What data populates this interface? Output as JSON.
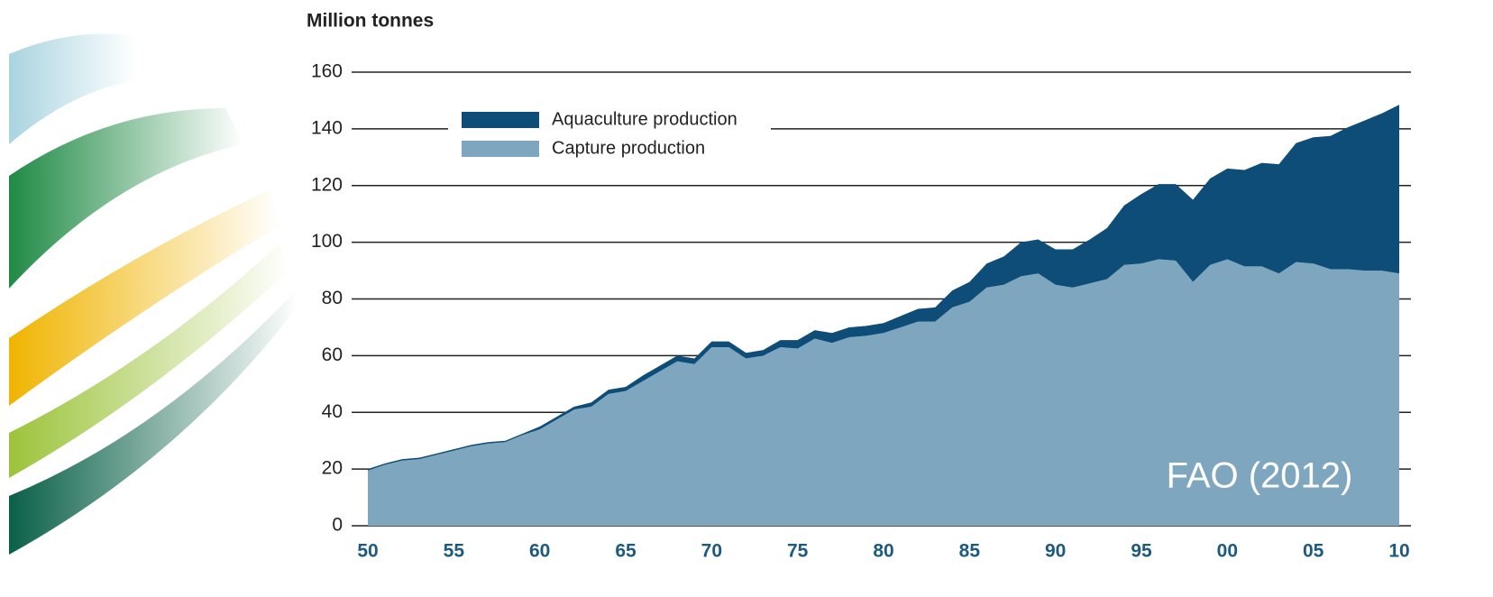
{
  "chart_data": {
    "type": "stacked-area",
    "title": "Million tonnes",
    "annotation": "FAO (2012)",
    "categories": [
      "50",
      null,
      null,
      null,
      null,
      "55",
      null,
      null,
      null,
      null,
      "60",
      null,
      null,
      null,
      null,
      "65",
      null,
      null,
      null,
      null,
      "70",
      null,
      null,
      null,
      null,
      "75",
      null,
      null,
      null,
      null,
      "80",
      null,
      null,
      null,
      null,
      "85",
      null,
      null,
      null,
      null,
      "90",
      null,
      null,
      null,
      null,
      "95",
      null,
      null,
      null,
      null,
      "00",
      null,
      null,
      null,
      null,
      "05",
      null,
      null,
      null,
      null,
      "10"
    ],
    "series": [
      {
        "name": "Capture production",
        "color": "#7fa6bf",
        "values": [
          19.5,
          21.5,
          23,
          23.5,
          25,
          26.5,
          28,
          29,
          29.5,
          32,
          34,
          37.5,
          41,
          42,
          46.5,
          47.5,
          51,
          54.5,
          58,
          57,
          63,
          63,
          59,
          60,
          63,
          62.5,
          66,
          64.5,
          66.5,
          67,
          68,
          70,
          72,
          72,
          77,
          79,
          84,
          85,
          88,
          89,
          85,
          84,
          85.5,
          87,
          92,
          92.5,
          94,
          93.5,
          86,
          92,
          94,
          91.5,
          91.5,
          89,
          93,
          92.5,
          90.5,
          90.5,
          90,
          90,
          89
        ]
      },
      {
        "name": "Aquaculture production",
        "color": "#0e4d78",
        "values": [
          0.5,
          0.5,
          0.5,
          0.5,
          0.5,
          0.5,
          0.5,
          0.5,
          0.5,
          0.5,
          1,
          1,
          1,
          1.5,
          1.5,
          1.5,
          2,
          2,
          2,
          2,
          2,
          2,
          2,
          2,
          2.5,
          3,
          3,
          3.5,
          3.5,
          3.5,
          3.5,
          4,
          4.5,
          5,
          6,
          7,
          8.5,
          10,
          12,
          12,
          12.5,
          13.5,
          15.5,
          18,
          21,
          24.5,
          26.5,
          27,
          29,
          30.5,
          32,
          34,
          36.5,
          38.5,
          42,
          44.5,
          47,
          50,
          53,
          55.5,
          59.5
        ]
      }
    ],
    "ylim": [
      0,
      160
    ],
    "yticks": [
      0,
      20,
      40,
      60,
      80,
      100,
      120,
      140,
      160
    ],
    "grid": true,
    "legend": "upper-left"
  }
}
